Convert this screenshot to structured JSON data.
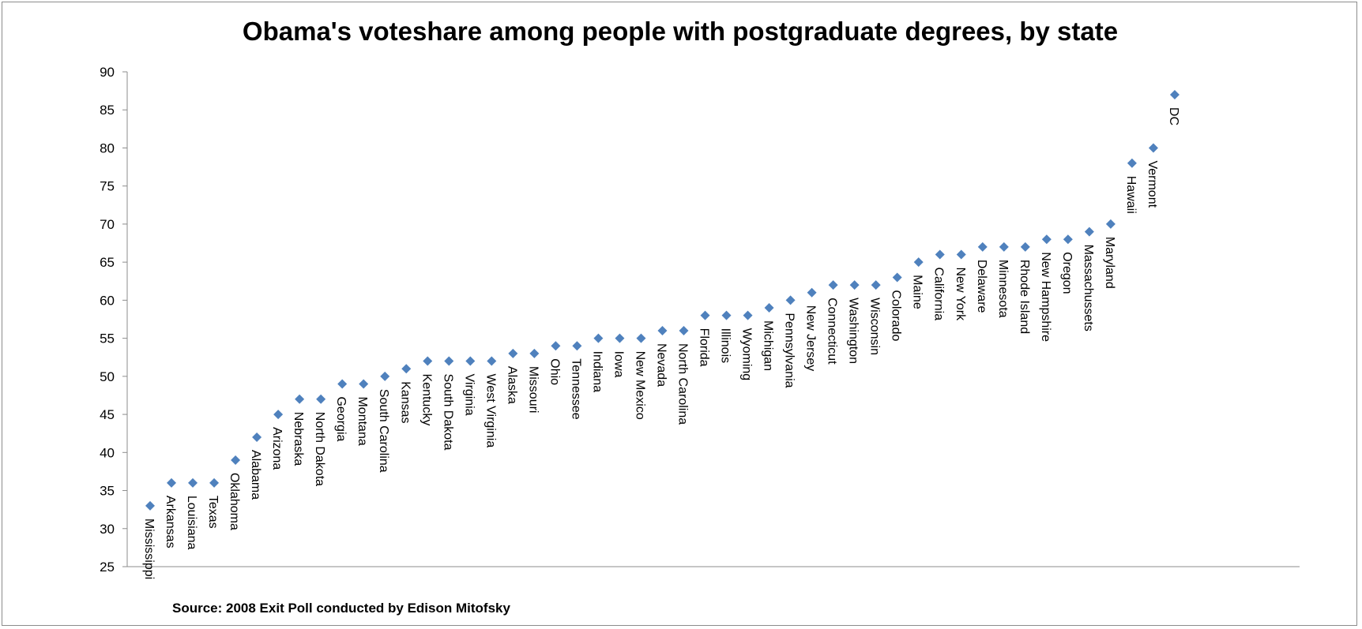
{
  "chart_data": {
    "type": "scatter",
    "title": "Obama's voteshare among people with postgraduate degrees, by state",
    "xlabel": "",
    "ylabel": "",
    "ylim": [
      25,
      90
    ],
    "yticks": [
      25,
      30,
      35,
      40,
      45,
      50,
      55,
      60,
      65,
      70,
      75,
      80,
      85,
      90
    ],
    "grid": false,
    "legend": "none",
    "marker": "diamond",
    "color": "#4f81bd",
    "points": [
      {
        "label": "Mississippi",
        "y": 33
      },
      {
        "label": "Arkansas",
        "y": 36
      },
      {
        "label": "Louisiana",
        "y": 36
      },
      {
        "label": "Texas",
        "y": 36
      },
      {
        "label": "Oklahoma",
        "y": 39
      },
      {
        "label": "Alabama",
        "y": 42
      },
      {
        "label": "Arizona",
        "y": 45
      },
      {
        "label": "Nebraska",
        "y": 47
      },
      {
        "label": "North Dakota",
        "y": 47
      },
      {
        "label": "Georgia",
        "y": 49
      },
      {
        "label": "Montana",
        "y": 49
      },
      {
        "label": "South Carolina",
        "y": 50
      },
      {
        "label": "Kansas",
        "y": 51
      },
      {
        "label": "Kentucky",
        "y": 52
      },
      {
        "label": "South Dakota",
        "y": 52
      },
      {
        "label": "Virginia",
        "y": 52
      },
      {
        "label": "West Virginia",
        "y": 52
      },
      {
        "label": "Alaska",
        "y": 53
      },
      {
        "label": "Missouri",
        "y": 53
      },
      {
        "label": "Ohio",
        "y": 54
      },
      {
        "label": "Tennessee",
        "y": 54
      },
      {
        "label": "Indiana",
        "y": 55
      },
      {
        "label": "Iowa",
        "y": 55
      },
      {
        "label": "New Mexico",
        "y": 55
      },
      {
        "label": "Nevada",
        "y": 56
      },
      {
        "label": "North Carolina",
        "y": 56
      },
      {
        "label": "Florida",
        "y": 58
      },
      {
        "label": "Illinois",
        "y": 58
      },
      {
        "label": "Wyoming",
        "y": 58
      },
      {
        "label": "Michigan",
        "y": 59
      },
      {
        "label": "Pennsylvania",
        "y": 60
      },
      {
        "label": "New Jersey",
        "y": 61
      },
      {
        "label": "Connecticut",
        "y": 62
      },
      {
        "label": "Washington",
        "y": 62
      },
      {
        "label": "Wisconsin",
        "y": 62
      },
      {
        "label": "Colorado",
        "y": 63
      },
      {
        "label": "Maine",
        "y": 65
      },
      {
        "label": "California",
        "y": 66
      },
      {
        "label": "New York",
        "y": 66
      },
      {
        "label": "Delaware",
        "y": 67
      },
      {
        "label": "Minnesota",
        "y": 67
      },
      {
        "label": "Rhode Island",
        "y": 67
      },
      {
        "label": "New Hampshire",
        "y": 68
      },
      {
        "label": "Oregon",
        "y": 68
      },
      {
        "label": "Massachussets",
        "y": 69
      },
      {
        "label": "Maryland",
        "y": 70
      },
      {
        "label": "Hawaii",
        "y": 78
      },
      {
        "label": "Vermont",
        "y": 80
      },
      {
        "label": "DC",
        "y": 87
      }
    ],
    "source": "Source: 2008 Exit Poll conducted by Edison Mitofsky"
  }
}
